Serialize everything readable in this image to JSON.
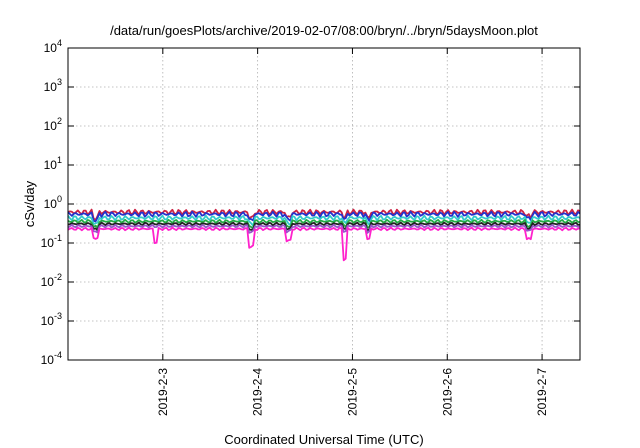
{
  "chart_data": {
    "type": "line",
    "title": "/data/run/goesPlots/archive/2019-02-07/08:00/bryn/../bryn/5daysMoon.plot",
    "xlabel": "Coordinated Universal Time (UTC)",
    "ylabel": "cSv/day",
    "yscale": "log",
    "ylim": [
      0.0001,
      10000
    ],
    "xlim": [
      2019.02,
      2019.074
    ],
    "grid": true,
    "y_ticks": [
      {
        "value": 10000,
        "base": "10",
        "exp": "4"
      },
      {
        "value": 1000,
        "base": "10",
        "exp": "3"
      },
      {
        "value": 100,
        "base": "10",
        "exp": "2"
      },
      {
        "value": 10,
        "base": "10",
        "exp": "1"
      },
      {
        "value": 1,
        "base": "10",
        "exp": "0"
      },
      {
        "value": 0.1,
        "base": "10",
        "exp": "-1"
      },
      {
        "value": 0.01,
        "base": "10",
        "exp": "-2"
      },
      {
        "value": 0.001,
        "base": "10",
        "exp": "-3"
      },
      {
        "value": 0.0001,
        "base": "10",
        "exp": "-4"
      }
    ],
    "x_ticks": [
      {
        "value": 2019.03,
        "label": "2019-2-3"
      },
      {
        "value": 2019.04,
        "label": "2019-2-4"
      },
      {
        "value": 2019.05,
        "label": "2019-2-5"
      },
      {
        "value": 2019.06,
        "label": "2019-2-6"
      },
      {
        "value": 2019.07,
        "label": "2019-2-7"
      }
    ],
    "series": [
      {
        "color": "#cc2244",
        "base": 0.62,
        "amp": 0.1,
        "dips": [
          [
            2019.0229,
            0.72
          ],
          [
            2019.0393,
            0.72
          ],
          [
            2019.0433,
            0.75
          ],
          [
            2019.0492,
            0.75
          ],
          [
            2019.0517,
            0.72
          ],
          [
            2019.0686,
            0.78
          ]
        ]
      },
      {
        "color": "#2233cc",
        "base": 0.55,
        "amp": 0.1,
        "dips": [
          [
            2019.0229,
            0.72
          ],
          [
            2019.0393,
            0.72
          ],
          [
            2019.0433,
            0.75
          ],
          [
            2019.0492,
            0.75
          ],
          [
            2019.0517,
            0.72
          ],
          [
            2019.0686,
            0.78
          ]
        ]
      },
      {
        "color": "#33cccc",
        "base": 0.44,
        "amp": 0.09,
        "dips": [
          [
            2019.0229,
            0.72
          ],
          [
            2019.0393,
            0.72
          ],
          [
            2019.0433,
            0.75
          ],
          [
            2019.0492,
            0.75
          ],
          [
            2019.0517,
            0.72
          ],
          [
            2019.0686,
            0.78
          ]
        ]
      },
      {
        "color": "#22aa44",
        "base": 0.36,
        "amp": 0.06,
        "dips": [
          [
            2019.0229,
            0.72
          ],
          [
            2019.0393,
            0.72
          ],
          [
            2019.0433,
            0.75
          ],
          [
            2019.0492,
            0.75
          ],
          [
            2019.0517,
            0.72
          ],
          [
            2019.0686,
            0.78
          ]
        ]
      },
      {
        "color": "#222222",
        "base": 0.31,
        "amp": 0.05,
        "dips": [
          [
            2019.0229,
            0.72
          ],
          [
            2019.0393,
            0.72
          ],
          [
            2019.0433,
            0.75
          ],
          [
            2019.0492,
            0.75
          ],
          [
            2019.0517,
            0.72
          ],
          [
            2019.0686,
            0.78
          ]
        ]
      },
      {
        "color": "#9955cc",
        "base": 0.27,
        "amp": 0.05,
        "dips": [
          [
            2019.0229,
            0.72
          ],
          [
            2019.0393,
            0.72
          ],
          [
            2019.0433,
            0.75
          ],
          [
            2019.0492,
            0.75
          ],
          [
            2019.0517,
            0.72
          ],
          [
            2019.0686,
            0.78
          ]
        ]
      },
      {
        "color": "#ff22cc",
        "base": 0.23,
        "amp": 0.05,
        "dips": [
          [
            2019.0229,
            0.58
          ],
          [
            2019.0293,
            0.45
          ],
          [
            2019.0393,
            0.35
          ],
          [
            2019.0433,
            0.5
          ],
          [
            2019.0492,
            0.17
          ],
          [
            2019.0517,
            0.55
          ],
          [
            2019.0686,
            0.55
          ]
        ]
      }
    ]
  }
}
